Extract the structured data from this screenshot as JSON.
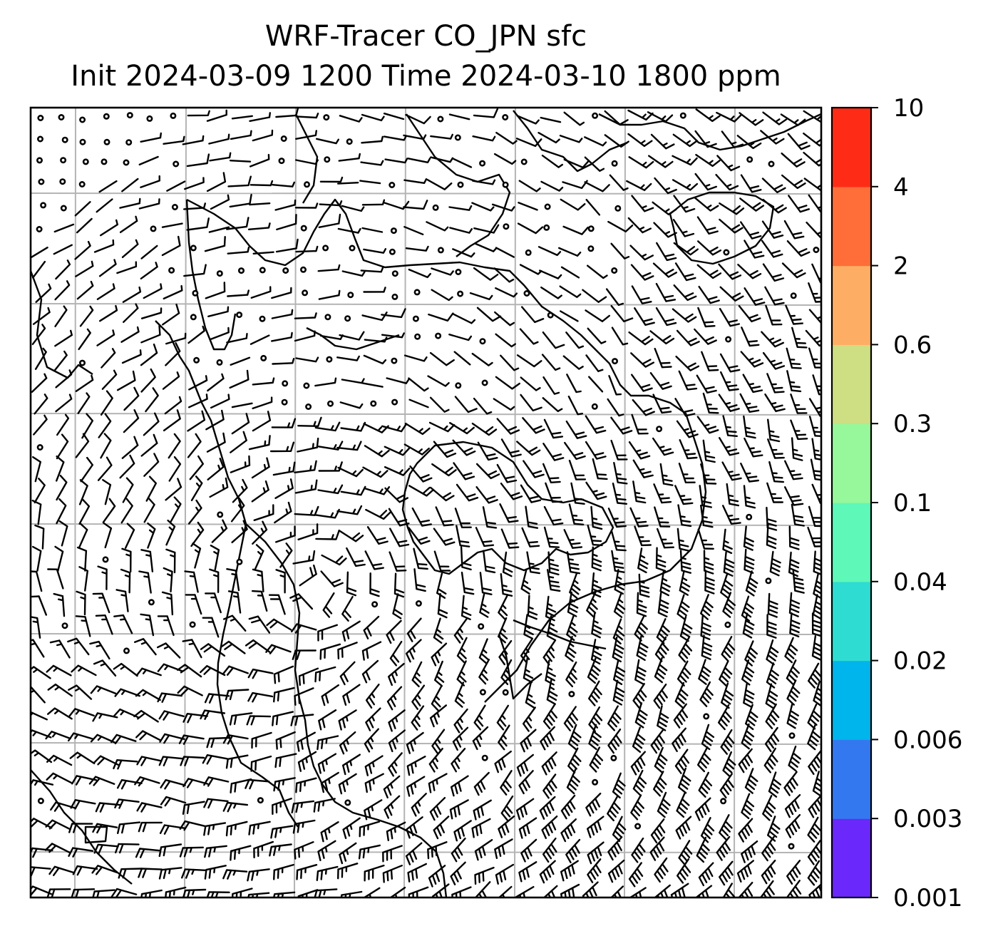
{
  "figure": {
    "title_line1": "WRF-Tracer CO_JPN sfc",
    "title_line2": "Init 2024-03-09 1200 Time 2024-03-10 1800 ppm"
  },
  "colorbar": {
    "levels": [
      "0.001",
      "0.003",
      "0.006",
      "0.02",
      "0.04",
      "0.1",
      "0.3",
      "0.6",
      "2",
      "4",
      "10"
    ],
    "colors": [
      "#6a28fa",
      "#3478f0",
      "#00b4ec",
      "#2edcd2",
      "#5ef8b8",
      "#96f89a",
      "#cede82",
      "#feae64",
      "#ff6e38",
      "#fe2c16"
    ]
  },
  "map": {
    "grid_lines": true,
    "frame_color": "#000000",
    "gridline_color": "#b4b4b4",
    "wind_barbs": true,
    "calm_markers": true
  }
}
